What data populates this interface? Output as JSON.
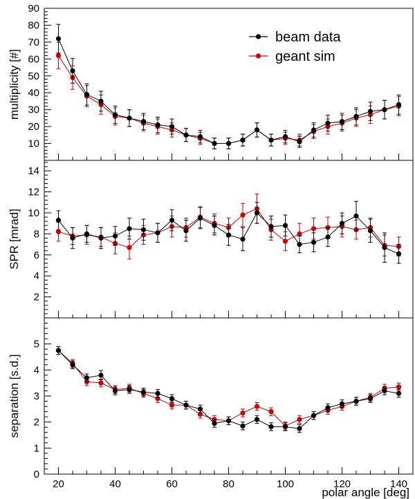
{
  "chart_data": [
    {
      "id": "multiplicity",
      "type": "line",
      "ylabel": "multiplicity [#]",
      "xlabel": "",
      "xlim": [
        15,
        145
      ],
      "ylim": [
        0,
        90
      ],
      "yticks": [
        10,
        20,
        30,
        40,
        50,
        60,
        70,
        80,
        90
      ],
      "legend": {
        "placement": "top-right",
        "entries": [
          {
            "label": "beam data",
            "color": "#000000"
          },
          {
            "label": "geant sim",
            "color": "#cc0000"
          }
        ]
      },
      "series": [
        {
          "name": "beam data",
          "color": "#000000",
          "x": [
            20,
            25,
            30,
            35,
            40,
            45,
            50,
            55,
            60,
            65,
            70,
            75,
            80,
            85,
            90,
            95,
            100,
            105,
            110,
            115,
            120,
            125,
            130,
            135,
            140
          ],
          "y": [
            72,
            53,
            39,
            35,
            27,
            25,
            23,
            21,
            20,
            15,
            14,
            10,
            10,
            12,
            18,
            12,
            14,
            11,
            18,
            22,
            23,
            26,
            29,
            30,
            33
          ],
          "err": [
            8.5,
            7.3,
            6.3,
            5.9,
            5.2,
            5.0,
            4.8,
            4.6,
            4.5,
            3.9,
            3.7,
            3.2,
            3.2,
            3.5,
            4.2,
            3.5,
            3.7,
            3.3,
            4.2,
            4.7,
            4.8,
            5.1,
            5.4,
            5.5,
            5.7
          ]
        },
        {
          "name": "geant sim",
          "color": "#cc0000",
          "x": [
            20,
            25,
            30,
            35,
            40,
            45,
            50,
            55,
            60,
            65,
            70,
            75,
            80,
            85,
            90,
            95,
            100,
            105,
            110,
            115,
            120,
            125,
            130,
            135,
            140
          ],
          "y": [
            62,
            49,
            38,
            33,
            26,
            25,
            22,
            20,
            18,
            15,
            13,
            10,
            10,
            12,
            18,
            12,
            13,
            12,
            17,
            20,
            22,
            25,
            27,
            30,
            32
          ],
          "err": [
            7.9,
            7.0,
            6.2,
            5.7,
            5.1,
            5.0,
            4.7,
            4.5,
            4.2,
            3.9,
            3.6,
            3.2,
            3.2,
            3.5,
            4.2,
            3.5,
            3.6,
            3.5,
            4.1,
            4.5,
            4.7,
            5.0,
            5.2,
            5.5,
            5.7
          ]
        }
      ]
    },
    {
      "id": "spr",
      "type": "line",
      "ylabel": "SPR [mrad]",
      "xlabel": "",
      "xlim": [
        15,
        145
      ],
      "ylim": [
        0,
        15
      ],
      "yticks": [
        2,
        4,
        6,
        8,
        10,
        12,
        14
      ],
      "series": [
        {
          "name": "beam data",
          "color": "#000000",
          "x": [
            20,
            25,
            30,
            35,
            40,
            45,
            50,
            55,
            60,
            65,
            70,
            75,
            80,
            85,
            90,
            95,
            100,
            105,
            110,
            115,
            120,
            125,
            130,
            135,
            140
          ],
          "y": [
            9.3,
            7.6,
            8.0,
            7.6,
            7.8,
            8.5,
            8.4,
            8.1,
            9.3,
            8.3,
            9.5,
            8.8,
            7.9,
            7.5,
            10.0,
            8.7,
            8.8,
            7.0,
            7.2,
            7.7,
            9.0,
            9.7,
            8.3,
            6.7,
            6.1
          ],
          "err": [
            0.9,
            1.0,
            0.8,
            1.0,
            0.9,
            1.0,
            1.0,
            0.9,
            1.0,
            1.0,
            1.0,
            0.9,
            1.0,
            1.1,
            1.0,
            1.0,
            1.0,
            0.8,
            0.9,
            0.9,
            1.0,
            1.4,
            1.1,
            1.4,
            0.9
          ]
        },
        {
          "name": "geant sim",
          "color": "#cc0000",
          "x": [
            20,
            25,
            30,
            35,
            40,
            45,
            50,
            55,
            60,
            65,
            70,
            75,
            80,
            85,
            90,
            95,
            100,
            105,
            110,
            115,
            120,
            125,
            130,
            135,
            140
          ],
          "y": [
            8.2,
            7.8,
            7.9,
            7.7,
            7.1,
            6.7,
            7.9,
            8.1,
            8.7,
            8.6,
            9.6,
            9.0,
            8.6,
            9.8,
            10.4,
            8.4,
            7.3,
            8.0,
            8.5,
            8.6,
            8.7,
            8.4,
            8.6,
            6.9,
            6.8
          ],
          "err": [
            0.9,
            0.8,
            0.9,
            0.9,
            1.0,
            1.1,
            0.9,
            0.9,
            1.0,
            0.9,
            1.0,
            0.9,
            0.9,
            1.1,
            1.4,
            1.0,
            0.9,
            1.0,
            1.0,
            1.0,
            1.0,
            0.9,
            0.9,
            1.0,
            0.9
          ]
        }
      ]
    },
    {
      "id": "separation",
      "type": "line",
      "ylabel": "separation [s.d.]",
      "xlabel": "polar angle [deg]",
      "xlim": [
        15,
        145
      ],
      "ylim": [
        0,
        6
      ],
      "yticks": [
        0,
        1,
        2,
        3,
        4,
        5
      ],
      "xticks": [
        20,
        40,
        60,
        80,
        100,
        120,
        140
      ],
      "series": [
        {
          "name": "beam data",
          "color": "#000000",
          "x": [
            20,
            25,
            30,
            35,
            40,
            45,
            50,
            55,
            60,
            65,
            70,
            75,
            80,
            85,
            90,
            95,
            100,
            105,
            110,
            115,
            120,
            125,
            130,
            135,
            140
          ],
          "y": [
            4.75,
            4.2,
            3.7,
            3.8,
            3.2,
            3.25,
            3.15,
            3.1,
            2.9,
            2.65,
            2.5,
            1.95,
            2.05,
            1.85,
            2.1,
            1.82,
            1.82,
            1.75,
            2.25,
            2.55,
            2.7,
            2.8,
            2.9,
            3.2,
            3.1
          ],
          "err": [
            0.15,
            0.15,
            0.15,
            0.18,
            0.15,
            0.15,
            0.15,
            0.15,
            0.15,
            0.15,
            0.15,
            0.15,
            0.15,
            0.15,
            0.15,
            0.15,
            0.15,
            0.15,
            0.15,
            0.15,
            0.15,
            0.15,
            0.15,
            0.15,
            0.15
          ]
        },
        {
          "name": "geant sim",
          "color": "#cc0000",
          "x": [
            20,
            25,
            30,
            35,
            40,
            45,
            50,
            55,
            60,
            65,
            70,
            75,
            80,
            85,
            90,
            95,
            100,
            105,
            110,
            115,
            120,
            125,
            130,
            135,
            140
          ],
          "y": [
            4.75,
            4.25,
            3.55,
            3.5,
            3.25,
            3.3,
            3.1,
            2.9,
            2.65,
            2.65,
            2.3,
            2.1,
            2.05,
            2.35,
            2.6,
            2.4,
            1.85,
            2.1,
            2.25,
            2.45,
            2.6,
            2.8,
            2.95,
            3.3,
            3.35
          ],
          "err": [
            0.15,
            0.15,
            0.15,
            0.15,
            0.15,
            0.15,
            0.15,
            0.15,
            0.15,
            0.15,
            0.15,
            0.15,
            0.15,
            0.15,
            0.15,
            0.15,
            0.15,
            0.15,
            0.15,
            0.15,
            0.15,
            0.15,
            0.15,
            0.15,
            0.15
          ]
        }
      ]
    }
  ]
}
